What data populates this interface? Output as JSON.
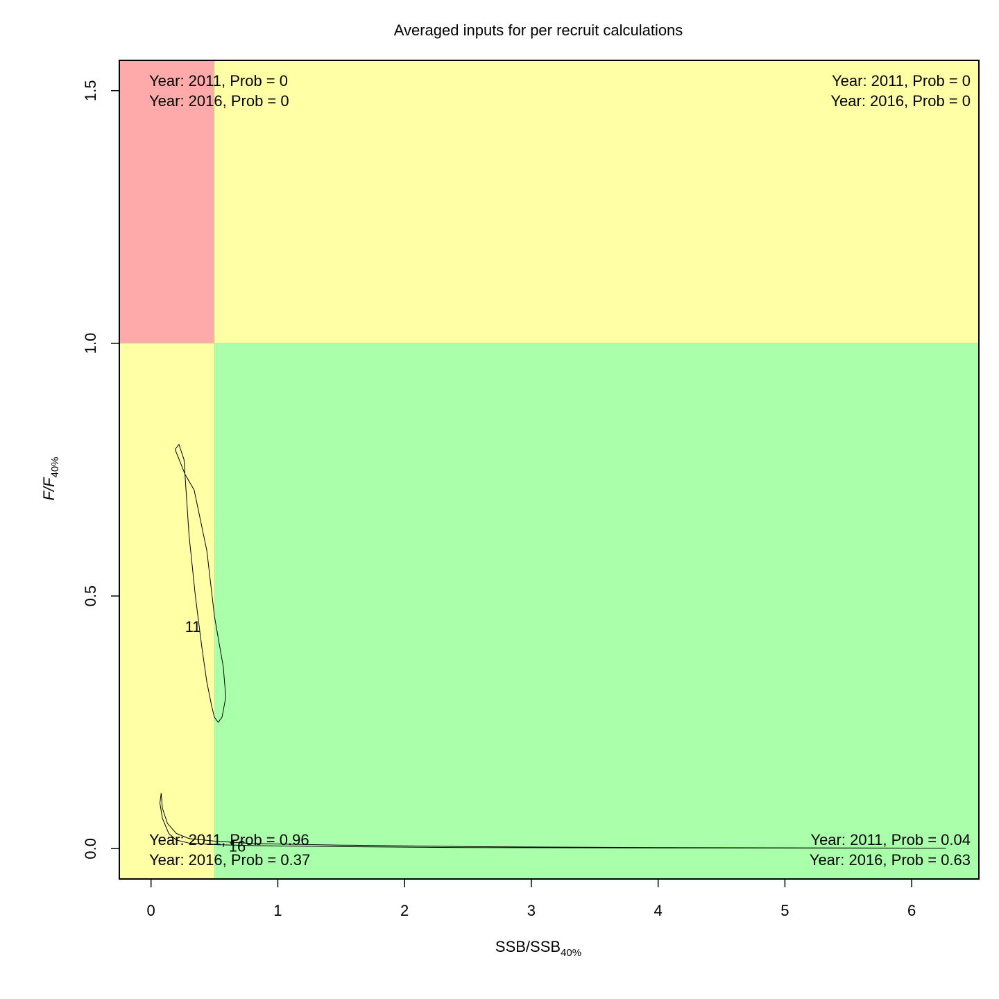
{
  "chart_data": {
    "type": "scatter",
    "title": "Averaged inputs for per recruit calculations",
    "xlabel": {
      "main": "SSB/SSB",
      "sub": "40%"
    },
    "ylabel": {
      "main": "F/F",
      "sub": "40%"
    },
    "xlim": [
      -0.25,
      6.53
    ],
    "ylim": [
      -0.06,
      1.56
    ],
    "xticks": [
      0,
      1,
      2,
      3,
      4,
      5,
      6
    ],
    "yticks": [
      0.0,
      0.5,
      1.0,
      1.5
    ],
    "xtick_labels": [
      "0",
      "1",
      "2",
      "3",
      "4",
      "5",
      "6"
    ],
    "ytick_labels": [
      "0.0",
      "0.5",
      "1.0",
      "1.5"
    ],
    "reference_lines": {
      "x": 0.5,
      "y": 1.0
    },
    "zones": [
      {
        "name": "overfished-overfishing",
        "x": [
          -0.25,
          0.5
        ],
        "y": [
          1.0,
          1.56
        ],
        "color": "#ffaaaa"
      },
      {
        "name": "overfishing",
        "x": [
          0.5,
          6.53
        ],
        "y": [
          1.0,
          1.56
        ],
        "color": "#ffffa6"
      },
      {
        "name": "overfished",
        "x": [
          -0.25,
          0.5
        ],
        "y": [
          -0.06,
          1.0
        ],
        "color": "#ffffa6"
      },
      {
        "name": "healthy",
        "x": [
          0.5,
          6.53
        ],
        "y": [
          -0.06,
          1.0
        ],
        "color": "#aaffaa"
      }
    ],
    "quadrant_text": {
      "top_left": [
        "Year: 2011, Prob = 0",
        "Year: 2016, Prob = 0"
      ],
      "top_right": [
        "Year: 2011, Prob = 0",
        "Year: 2016, Prob = 0"
      ],
      "bottom_left": [
        "Year: 2011, Prob = 0.96",
        "Year: 2016, Prob = 0.37"
      ],
      "bottom_right": [
        "Year: 2011, Prob = 0.04",
        "Year: 2016, Prob = 0.63"
      ]
    },
    "contours": [
      {
        "label": "11",
        "label_at": [
          0.33,
          0.44
        ],
        "points": [
          [
            0.22,
            0.8
          ],
          [
            0.26,
            0.77
          ],
          [
            0.3,
            0.62
          ],
          [
            0.35,
            0.5
          ],
          [
            0.4,
            0.4
          ],
          [
            0.44,
            0.33
          ],
          [
            0.48,
            0.28
          ],
          [
            0.5,
            0.26
          ],
          [
            0.53,
            0.25
          ],
          [
            0.56,
            0.26
          ],
          [
            0.59,
            0.3
          ],
          [
            0.57,
            0.36
          ],
          [
            0.5,
            0.46
          ],
          [
            0.44,
            0.59
          ],
          [
            0.34,
            0.71
          ],
          [
            0.27,
            0.74
          ],
          [
            0.19,
            0.79
          ],
          [
            0.22,
            0.8
          ]
        ]
      },
      {
        "label": "16",
        "label_at": [
          0.68,
          0.005
        ],
        "points": [
          [
            0.08,
            0.11
          ],
          [
            0.09,
            0.08
          ],
          [
            0.13,
            0.05
          ],
          [
            0.2,
            0.03
          ],
          [
            0.3,
            0.02
          ],
          [
            0.5,
            0.015
          ],
          [
            0.8,
            0.01
          ],
          [
            1.5,
            0.007
          ],
          [
            2.5,
            0.004
          ],
          [
            4.0,
            0.002
          ],
          [
            6.27,
            0.001
          ],
          [
            4.0,
            0.0015
          ],
          [
            2.5,
            0.002
          ],
          [
            1.5,
            0.004
          ],
          [
            0.8,
            0.006
          ],
          [
            0.5,
            0.008
          ],
          [
            0.3,
            0.011
          ],
          [
            0.2,
            0.017
          ],
          [
            0.14,
            0.03
          ],
          [
            0.09,
            0.06
          ],
          [
            0.07,
            0.09
          ],
          [
            0.08,
            0.11
          ]
        ]
      }
    ]
  }
}
